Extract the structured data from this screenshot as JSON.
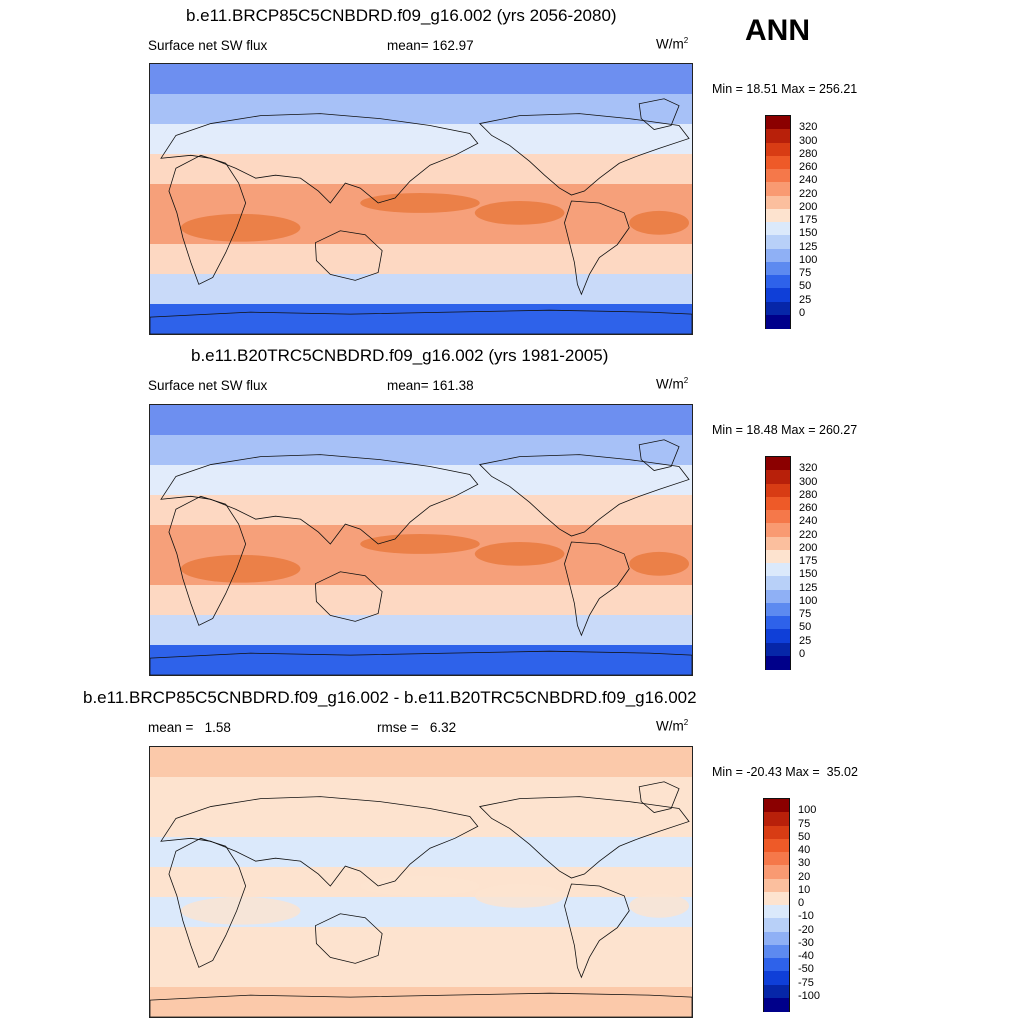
{
  "season": "ANN",
  "panels": [
    {
      "title": "b.e11.BRCP85C5CNBDRD.f09_g16.002 (yrs 2056-2080)",
      "left_label": "Surface net SW flux",
      "center_label": "mean= 162.97",
      "units_base": "W/m",
      "units_exp": "2",
      "minmax": "Min =  18.51 Max = 256.21",
      "colorbar": {
        "labels": [
          "320",
          "300",
          "280",
          "260",
          "240",
          "220",
          "200",
          "175",
          "150",
          "125",
          "100",
          "75",
          "50",
          "25",
          "0"
        ],
        "colors": [
          "#8b0000",
          "#b8200a",
          "#d83c14",
          "#ee5a28",
          "#f5784a",
          "#f99a72",
          "#fbbf9e",
          "#fde3cf",
          "#dbe9fb",
          "#b8d0f8",
          "#8fb0f5",
          "#5d8af0",
          "#2e62ea",
          "#0f3fd8",
          "#0626a8",
          "#00008a"
        ],
        "bands": [
          "#6d8ff0",
          "#a7c1f7",
          "#e2ecfb",
          "#fdd8c2",
          "#f6a07a",
          "#f6a07a",
          "#fdd8c2",
          "#c9daf9",
          "#2e62ea"
        ]
      },
      "map_fill": "#e8783c"
    },
    {
      "title": "b.e11.B20TRC5CNBDRD.f09_g16.002 (yrs 1981-2005)",
      "left_label": "Surface net SW flux",
      "center_label": "mean= 161.38",
      "units_base": "W/m",
      "units_exp": "2",
      "minmax": "Min =  18.48 Max = 260.27",
      "colorbar": {
        "labels": [
          "320",
          "300",
          "280",
          "260",
          "240",
          "220",
          "200",
          "175",
          "150",
          "125",
          "100",
          "75",
          "50",
          "25",
          "0"
        ],
        "colors": [
          "#8b0000",
          "#b8200a",
          "#d83c14",
          "#ee5a28",
          "#f5784a",
          "#f99a72",
          "#fbbf9e",
          "#fde3cf",
          "#dbe9fb",
          "#b8d0f8",
          "#8fb0f5",
          "#5d8af0",
          "#2e62ea",
          "#0f3fd8",
          "#0626a8",
          "#00008a"
        ],
        "bands": [
          "#6d8ff0",
          "#a7c1f7",
          "#e2ecfb",
          "#fdd8c2",
          "#f6a07a",
          "#f6a07a",
          "#fdd8c2",
          "#c9daf9",
          "#2e62ea"
        ]
      },
      "map_fill": "#e8783c"
    },
    {
      "title": "b.e11.BRCP85C5CNBDRD.f09_g16.002 - b.e11.B20TRC5CNBDRD.f09_g16.002",
      "left_label": "mean =   1.58",
      "center_label": "rmse =   6.32",
      "units_base": "W/m",
      "units_exp": "2",
      "minmax": "Min = -20.43 Max =  35.02",
      "colorbar": {
        "labels": [
          "100",
          "75",
          "50",
          "40",
          "30",
          "20",
          "10",
          "0",
          "-10",
          "-20",
          "-30",
          "-40",
          "-50",
          "-75",
          "-100"
        ],
        "colors": [
          "#8b0000",
          "#b8200a",
          "#d83c14",
          "#ee5a28",
          "#f5784a",
          "#f99a72",
          "#fbbf9e",
          "#fde3cf",
          "#dbe9fb",
          "#b8d0f8",
          "#8fb0f5",
          "#5d8af0",
          "#2e62ea",
          "#0f3fd8",
          "#0626a8",
          "#00008a"
        ],
        "bands": [
          "#fbc9aa",
          "#fde3cf",
          "#fde3cf",
          "#dbe9fb",
          "#fde3cf",
          "#dbe9fb",
          "#fde3cf",
          "#fde3cf",
          "#fbc9aa"
        ]
      },
      "map_fill": "#fde3cf"
    }
  ]
}
